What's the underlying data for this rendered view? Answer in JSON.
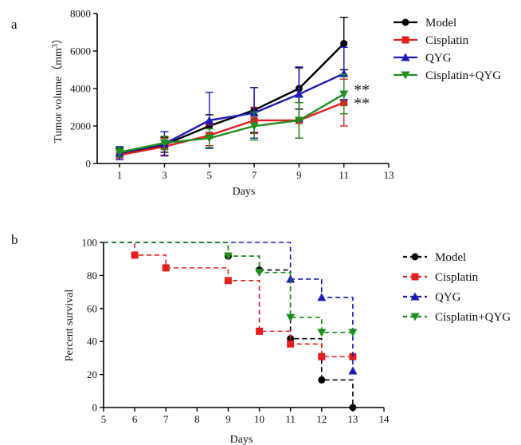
{
  "colors": {
    "model": "#000000",
    "cisplatin": "#e41f1f",
    "qyg": "#1a1ab8",
    "combo": "#1f8f1f"
  },
  "chart_data": [
    {
      "panel_label": "a",
      "type": "line",
      "xlabel": "Days",
      "ylabel": "Tumor volume（mm",
      "ylabel_sup": "3",
      "ylabel_end": "）",
      "xlim": [
        0,
        13
      ],
      "ylim": [
        0,
        8000
      ],
      "xticks": [
        1,
        3,
        5,
        7,
        9,
        11,
        13
      ],
      "yticks": [
        0,
        2000,
        4000,
        6000,
        8000
      ],
      "x": [
        1,
        3,
        5,
        7,
        9,
        11
      ],
      "legend": "right",
      "significance": [
        "**",
        "**"
      ],
      "series": [
        {
          "name": "Model",
          "marker": "circle",
          "values": [
            500,
            1000,
            2000,
            2850,
            4000,
            6400
          ],
          "err": [
            300,
            400,
            600,
            1200,
            1100,
            1400
          ]
        },
        {
          "name": "Cisplatin",
          "marker": "square",
          "values": [
            450,
            900,
            1500,
            2300,
            2300,
            3250
          ],
          "err": [
            250,
            450,
            550,
            700,
            950,
            1250
          ]
        },
        {
          "name": "QYG",
          "marker": "triangle-up",
          "values": [
            550,
            1050,
            2300,
            2700,
            3700,
            4800
          ],
          "err": [
            350,
            650,
            1500,
            1350,
            1450,
            1400
          ]
        },
        {
          "name": "Cisplatin+QYG",
          "marker": "triangle-down",
          "values": [
            600,
            1100,
            1350,
            2000,
            2300,
            3700
          ],
          "err": [
            250,
            350,
            500,
            750,
            950,
            1050
          ]
        }
      ]
    },
    {
      "panel_label": "b",
      "type": "line",
      "step": true,
      "xlabel": "Days",
      "ylabel": "Percent survival",
      "xlim": [
        5,
        14
      ],
      "ylim": [
        0,
        100
      ],
      "xticks": [
        5,
        6,
        7,
        8,
        9,
        10,
        11,
        12,
        13,
        14
      ],
      "yticks": [
        0,
        20,
        40,
        60,
        80,
        100
      ],
      "legend": "right",
      "series": [
        {
          "name": "Model",
          "marker": "circle",
          "x": [
            5,
            9,
            10,
            11,
            12,
            13
          ],
          "values": [
            100,
            91.7,
            83.3,
            41.7,
            16.7,
            0
          ]
        },
        {
          "name": "Cisplatin",
          "marker": "square",
          "x": [
            5,
            6,
            7,
            9,
            10,
            11,
            12,
            13
          ],
          "values": [
            100,
            92.3,
            84.6,
            76.9,
            46.2,
            38.5,
            30.8,
            30.8
          ]
        },
        {
          "name": "QYG",
          "marker": "triangle-up",
          "x": [
            5,
            11,
            12,
            13
          ],
          "values": [
            100,
            77.8,
            66.7,
            22.2
          ]
        },
        {
          "name": "Cisplatin+QYG",
          "marker": "triangle-down",
          "x": [
            5,
            9,
            10,
            11,
            12,
            13
          ],
          "values": [
            100,
            91.7,
            81.8,
            54.5,
            45.5,
            45.5
          ]
        }
      ]
    }
  ]
}
